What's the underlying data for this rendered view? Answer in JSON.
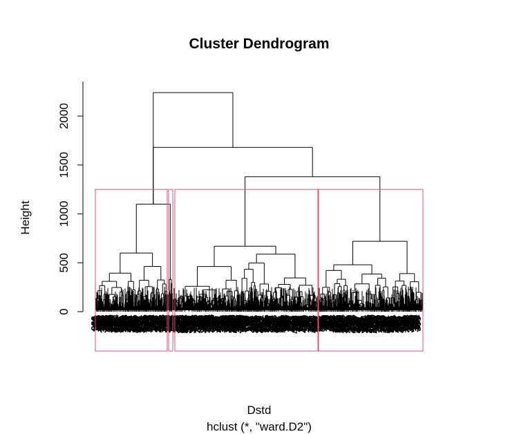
{
  "chart_data": {
    "type": "dendrogram",
    "title": "Cluster Dendrogram",
    "ylabel": "Height",
    "xlabel": "Dstd",
    "sublabel": "hclust (*, \"ward.D2\")",
    "ylim": [
      0,
      2250
    ],
    "yticks": [
      0,
      500,
      1000,
      1500,
      2000
    ],
    "merge_heights": {
      "root": 2240,
      "second": 1680,
      "third": 1380,
      "left_cluster": 1100,
      "right_cluster": 720,
      "middle_cluster": 670
    },
    "leaf_count": 475,
    "leaf_label_note": "leaf labels are overplotted and illegible",
    "rect_hclust": {
      "k": 4,
      "border_color": "#DF536B",
      "groups": [
        "left-small",
        "left-main",
        "middle",
        "right"
      ]
    }
  }
}
